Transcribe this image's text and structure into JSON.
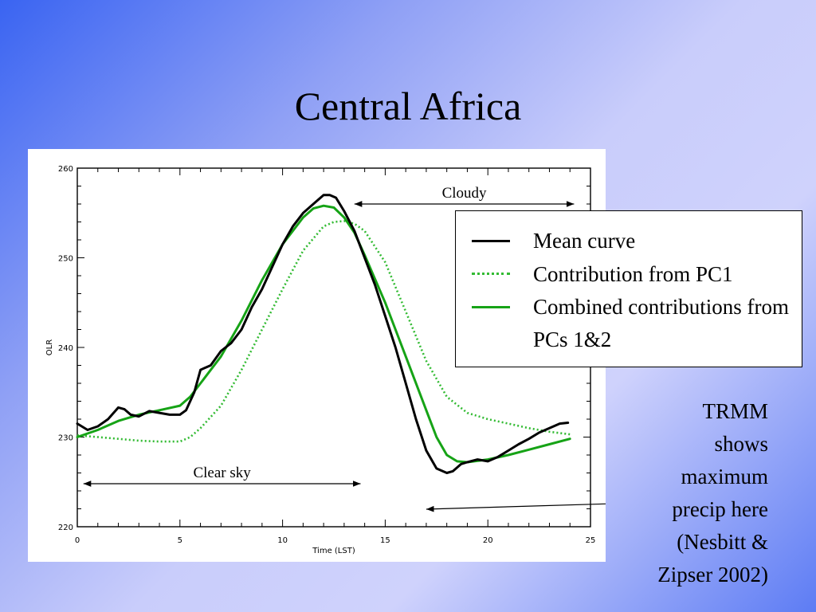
{
  "slide": {
    "title": "Central Africa",
    "note_lines": [
      "TRMM",
      "shows",
      "maximum",
      "precip here",
      "(Nesbitt &",
      "Zipser 2002)"
    ]
  },
  "colors": {
    "mean": "#000000",
    "pc1": "#33bb33",
    "combined": "#16a316"
  },
  "chart_data": {
    "type": "line",
    "xlabel": "Time (LST)",
    "ylabel": "OLR",
    "xlim": [
      0,
      25
    ],
    "ylim": [
      220,
      260
    ],
    "xticks": [
      0,
      5,
      10,
      15,
      20,
      25
    ],
    "yticks": [
      220,
      230,
      240,
      250,
      260
    ],
    "grid": false,
    "legend_position": "top-right",
    "series": [
      {
        "name": "Mean curve",
        "style": "solid",
        "color": "#000000",
        "x": [
          0,
          0.5,
          1,
          1.5,
          2,
          2.3,
          2.6,
          3,
          3.5,
          4,
          4.5,
          5,
          5.3,
          5.7,
          6,
          6.5,
          7,
          7.5,
          8,
          8.5,
          9,
          9.5,
          10,
          10.5,
          11,
          11.5,
          12,
          12.3,
          12.6,
          13,
          13.5,
          14,
          14.5,
          15,
          15.5,
          16,
          16.5,
          17,
          17.5,
          18,
          18.3,
          18.7,
          19,
          19.5,
          20,
          20.5,
          21,
          21.5,
          22,
          22.5,
          23,
          23.5,
          23.9
        ],
        "y": [
          231.5,
          230.8,
          231.2,
          232,
          233.3,
          233.1,
          232.5,
          232.3,
          232.9,
          232.7,
          232.5,
          232.5,
          233,
          235,
          237.5,
          238,
          239.6,
          240.5,
          242,
          244.5,
          246.5,
          249,
          251.5,
          253.5,
          255,
          256,
          257,
          257,
          256.7,
          255.2,
          253,
          250,
          247,
          243.5,
          240,
          236,
          232,
          228.5,
          226.5,
          226,
          226.2,
          227,
          227.2,
          227.5,
          227.3,
          227.8,
          228.5,
          229.2,
          229.8,
          230.5,
          231,
          231.5,
          231.6
        ]
      },
      {
        "name": "Contribution from PC1",
        "style": "dotted",
        "color": "#33bb33",
        "x": [
          0,
          1,
          2,
          3,
          4,
          5,
          5.5,
          6,
          7,
          8,
          9,
          10,
          11,
          12,
          12.5,
          13,
          13.5,
          14,
          15,
          16,
          17,
          18,
          19,
          20,
          21,
          22,
          23,
          24
        ],
        "y": [
          230.2,
          230,
          229.8,
          229.6,
          229.5,
          229.5,
          230,
          231,
          233.5,
          237.5,
          242,
          246.5,
          250.8,
          253.5,
          254,
          254.1,
          253.8,
          253,
          249.5,
          244,
          238.5,
          234.5,
          232.7,
          232,
          231.5,
          231,
          230.6,
          230.3
        ]
      },
      {
        "name": "Combined contributions from PCs 1&2",
        "style": "solid",
        "color": "#16a316",
        "x": [
          0,
          1,
          2,
          3,
          4,
          5,
          5.5,
          6,
          7,
          8,
          9,
          10,
          11,
          11.5,
          12,
          12.5,
          13,
          13.5,
          14,
          15,
          16,
          17,
          17.5,
          18,
          18.5,
          19,
          20,
          21,
          22,
          23,
          24
        ],
        "y": [
          230,
          230.8,
          231.8,
          232.5,
          233,
          233.5,
          234.5,
          236,
          239,
          243,
          247.5,
          251.5,
          254.5,
          255.5,
          255.8,
          255.6,
          254.5,
          252.8,
          250.3,
          245,
          239,
          233,
          230,
          228,
          227.3,
          227.2,
          227.5,
          228,
          228.6,
          229.2,
          229.8
        ]
      }
    ],
    "annotations": [
      {
        "text": "Cloudy",
        "x_start": 13.5,
        "x_end": 24.2,
        "y": 256
      },
      {
        "text": "Clear sky",
        "x_start": 0.3,
        "x_end": 13.8,
        "y": 224.8
      },
      {
        "text": "",
        "arrow_to_x": 17,
        "arrow_to_y": 222
      }
    ]
  }
}
